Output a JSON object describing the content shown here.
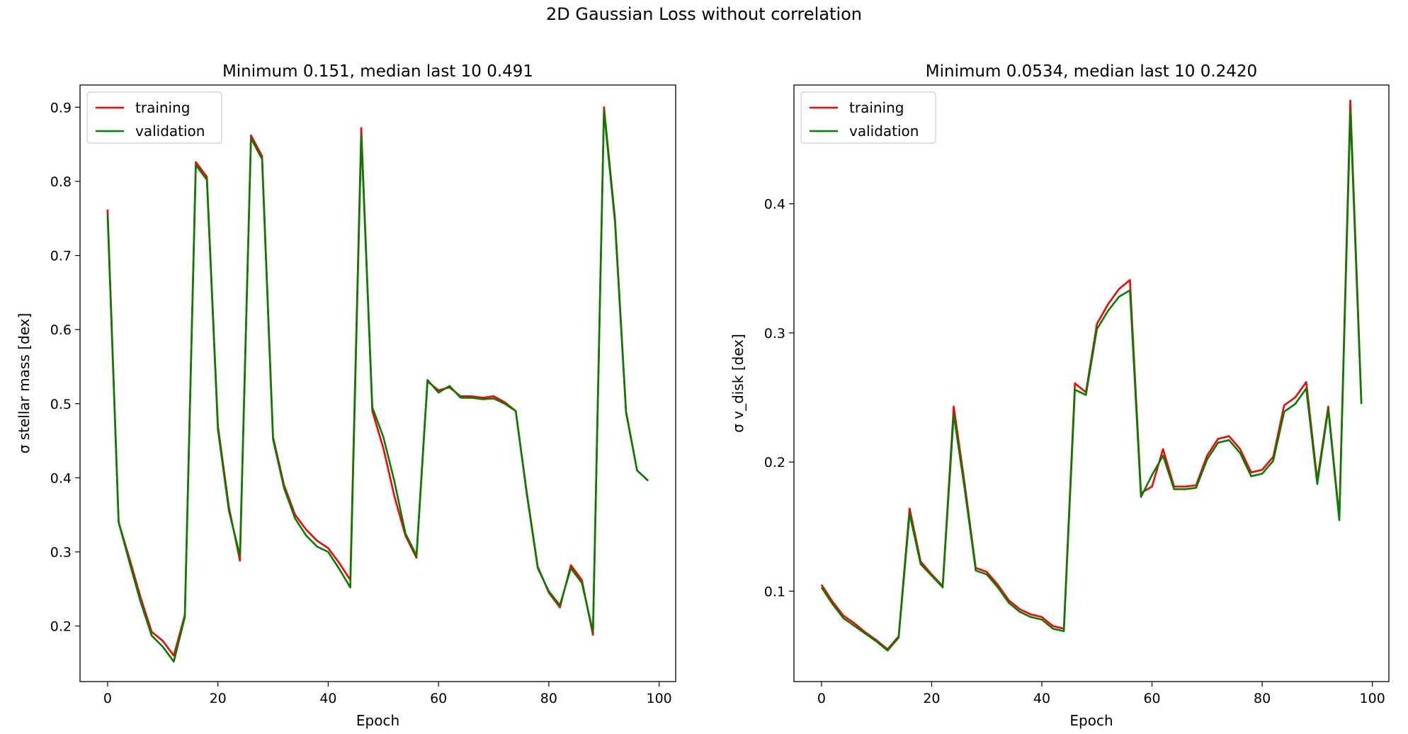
{
  "figure": {
    "suptitle": "2D Gaussian Loss without correlation"
  },
  "chart_data": [
    {
      "type": "line",
      "title": "Minimum 0.151, median last 10 0.491",
      "xlabel": "Epoch",
      "ylabel": "σ stellar mass [dex]",
      "xlim": [
        -5,
        103
      ],
      "ylim": [
        0.125,
        0.93
      ],
      "xticks": [
        0,
        20,
        40,
        60,
        80,
        100
      ],
      "yticks": [
        0.2,
        0.3,
        0.4,
        0.5,
        0.6,
        0.7,
        0.8,
        0.9
      ],
      "grid": false,
      "legend": "top-left",
      "x": [
        0,
        2,
        4,
        6,
        8,
        10,
        12,
        14,
        16,
        18,
        20,
        22,
        24,
        26,
        28,
        30,
        32,
        34,
        36,
        38,
        40,
        42,
        44,
        46,
        48,
        50,
        52,
        54,
        56,
        58,
        60,
        62,
        64,
        66,
        68,
        70,
        72,
        74,
        76,
        78,
        80,
        82,
        84,
        86,
        88,
        90,
        92,
        94,
        96,
        98
      ],
      "series": [
        {
          "name": "training",
          "color": "#ff0000",
          "values": [
            0.762,
            0.34,
            0.29,
            0.238,
            0.192,
            0.18,
            0.16,
            0.215,
            0.826,
            0.806,
            0.47,
            0.36,
            0.288,
            0.862,
            0.834,
            0.455,
            0.39,
            0.35,
            0.33,
            0.315,
            0.305,
            0.285,
            0.262,
            0.872,
            0.49,
            0.44,
            0.375,
            0.322,
            0.292,
            0.53,
            0.518,
            0.522,
            0.51,
            0.51,
            0.508,
            0.51,
            0.502,
            0.49,
            0.38,
            0.28,
            0.245,
            0.225,
            0.282,
            0.262,
            0.188,
            0.9,
            0.75,
            0.49,
            0.41,
            0.396
          ]
        },
        {
          "name": "validation",
          "color": "#008000",
          "values": [
            0.755,
            0.34,
            0.285,
            0.232,
            0.187,
            0.172,
            0.152,
            0.212,
            0.822,
            0.802,
            0.465,
            0.355,
            0.295,
            0.858,
            0.83,
            0.452,
            0.386,
            0.345,
            0.322,
            0.307,
            0.3,
            0.277,
            0.252,
            0.862,
            0.495,
            0.455,
            0.395,
            0.325,
            0.295,
            0.532,
            0.515,
            0.524,
            0.508,
            0.508,
            0.506,
            0.507,
            0.5,
            0.49,
            0.378,
            0.278,
            0.247,
            0.228,
            0.278,
            0.258,
            0.192,
            0.895,
            0.745,
            0.488,
            0.41,
            0.396
          ]
        }
      ]
    },
    {
      "type": "line",
      "title": "Minimum 0.0534, median last 10 0.2420",
      "xlabel": "Epoch",
      "ylabel": "σ v_disk [dex]",
      "xlim": [
        -5,
        103
      ],
      "ylim": [
        0.03,
        0.492
      ],
      "xticks": [
        0,
        20,
        40,
        60,
        80,
        100
      ],
      "yticks": [
        0.1,
        0.2,
        0.3,
        0.4
      ],
      "grid": false,
      "legend": "top-left",
      "x": [
        0,
        2,
        4,
        6,
        8,
        10,
        12,
        14,
        16,
        18,
        20,
        22,
        24,
        26,
        28,
        30,
        32,
        34,
        36,
        38,
        40,
        42,
        44,
        46,
        48,
        50,
        52,
        54,
        56,
        58,
        60,
        62,
        64,
        66,
        68,
        70,
        72,
        74,
        76,
        78,
        80,
        82,
        84,
        86,
        88,
        90,
        92,
        94,
        96,
        98
      ],
      "series": [
        {
          "name": "training",
          "color": "#ff0000",
          "values": [
            0.105,
            0.092,
            0.081,
            0.075,
            0.068,
            0.062,
            0.055,
            0.065,
            0.164,
            0.123,
            0.113,
            0.104,
            0.243,
            0.183,
            0.118,
            0.115,
            0.105,
            0.093,
            0.086,
            0.082,
            0.08,
            0.073,
            0.071,
            0.261,
            0.254,
            0.307,
            0.322,
            0.334,
            0.341,
            0.176,
            0.181,
            0.21,
            0.181,
            0.181,
            0.182,
            0.205,
            0.218,
            0.22,
            0.21,
            0.192,
            0.194,
            0.204,
            0.244,
            0.25,
            0.262,
            0.186,
            0.243,
            0.157,
            0.48,
            0.247
          ]
        },
        {
          "name": "validation",
          "color": "#008000",
          "values": [
            0.103,
            0.09,
            0.079,
            0.073,
            0.067,
            0.061,
            0.054,
            0.064,
            0.16,
            0.121,
            0.112,
            0.103,
            0.237,
            0.179,
            0.116,
            0.113,
            0.103,
            0.091,
            0.084,
            0.08,
            0.078,
            0.071,
            0.069,
            0.256,
            0.252,
            0.303,
            0.317,
            0.328,
            0.333,
            0.173,
            0.19,
            0.205,
            0.179,
            0.179,
            0.18,
            0.202,
            0.215,
            0.217,
            0.207,
            0.189,
            0.191,
            0.201,
            0.239,
            0.245,
            0.257,
            0.183,
            0.241,
            0.155,
            0.472,
            0.245
          ]
        }
      ]
    }
  ]
}
